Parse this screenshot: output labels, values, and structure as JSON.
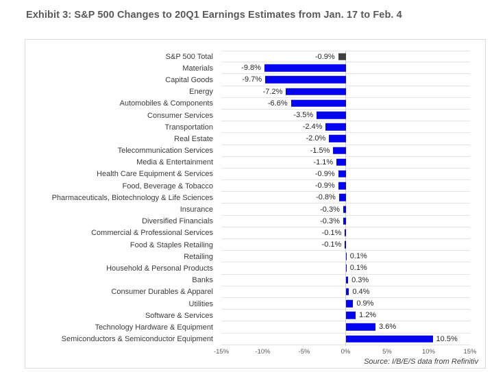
{
  "page": {
    "title": "Exhibit 3: S&P 500 Changes to 20Q1 Earnings Estimates from Jan. 17 to Feb. 4",
    "source": "Source: I/B/E/S data from Refinitiv"
  },
  "colors": {
    "bar_blue": "#0404EE",
    "bar_total": "#404040",
    "gridline": "#E4E4E4",
    "zero_line": "#CFCFCF",
    "box_border": "#D9D9D9",
    "title_text": "#595959",
    "label_text": "#3A3A3A",
    "tick_text": "#595959"
  },
  "chart_data": {
    "type": "bar",
    "orientation": "horizontal",
    "title": "Exhibit 3: S&P 500 Changes to 20Q1 Earnings Estimates from Jan. 17 to Feb. 4",
    "xlabel": "",
    "ylabel": "",
    "xlim": [
      -15,
      15
    ],
    "x_ticks": [
      "-15%",
      "-10%",
      "-5%",
      "0%",
      "5%",
      "10%",
      "15%"
    ],
    "grid": "horizontal category separators with vertical zero axis line",
    "legend": "none",
    "highlight_category": "S&P 500 Total",
    "source": "Source: I/B/E/S data from Refinitiv",
    "categories": [
      "S&P 500 Total",
      "Materials",
      "Capital Goods",
      "Energy",
      "Automobiles & Components",
      "Consumer Services",
      "Transportation",
      "Real Estate",
      "Telecommunication Services",
      "Media & Entertainment",
      "Health Care Equipment & Services",
      "Food, Beverage & Tobacco",
      "Pharmaceuticals, Biotechnology & Life Sciences",
      "Insurance",
      "Diversified Financials",
      "Commercial & Professional Services",
      "Food & Staples Retailing",
      "Retailing",
      "Household & Personal Products",
      "Banks",
      "Consumer Durables & Apparel",
      "Utilities",
      "Software & Services",
      "Technology Hardware & Equipment",
      "Semiconductors & Semiconductor Equipment"
    ],
    "values": [
      -0.9,
      -9.8,
      -9.7,
      -7.2,
      -6.6,
      -3.5,
      -2.4,
      -2.0,
      -1.5,
      -1.1,
      -0.9,
      -0.9,
      -0.8,
      -0.3,
      -0.3,
      -0.1,
      -0.1,
      0.1,
      0.1,
      0.3,
      0.4,
      0.9,
      1.2,
      3.6,
      10.5
    ],
    "labels": [
      "-0.9%",
      "-9.8%",
      "-9.7%",
      "-7.2%",
      "-6.6%",
      "-3.5%",
      "-2.4%",
      "-2.0%",
      "-1.5%",
      "-1.1%",
      "-0.9%",
      "-0.9%",
      "-0.8%",
      "-0.3%",
      "-0.3%",
      "-0.1%",
      "-0.1%",
      "0.1%",
      "0.1%",
      "0.3%",
      "0.4%",
      "0.9%",
      "1.2%",
      "3.6%",
      "10.5%"
    ]
  }
}
